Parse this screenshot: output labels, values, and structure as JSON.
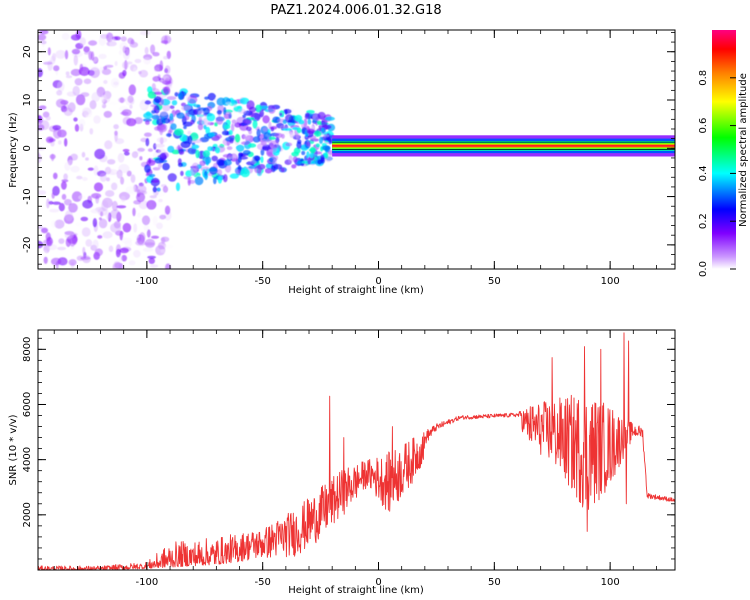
{
  "figure": {
    "title": "PAZ1.2024.006.01.32.G18"
  },
  "chart_data": [
    {
      "type": "heatmap",
      "panel": "spectrogram",
      "xlabel": "Height of straight line (km)",
      "ylabel": "Frequency (Hz)",
      "xlim": [
        -147,
        128
      ],
      "ylim": [
        -25,
        24.5
      ],
      "xticks": [
        -100,
        -50,
        0,
        50,
        100
      ],
      "yticks": [
        -20,
        -10,
        0,
        10,
        20
      ],
      "colorbar": {
        "label": "Normalized spectral amplitude",
        "range": [
          0.0,
          1.0
        ],
        "ticks": [
          0.0,
          0.2,
          0.4,
          0.6,
          0.8
        ],
        "colormap": [
          "#ffffff",
          "#cc99ff",
          "#7f00ff",
          "#0000ff",
          "#00ffff",
          "#00ff00",
          "#ffff00",
          "#ff8000",
          "#ff0000",
          "#ff0080"
        ]
      },
      "description_segments": [
        {
          "x_range": [
            -147,
            -100
          ],
          "spread_hz": 25,
          "peak_amplitude": 0.25
        },
        {
          "x_range": [
            -100,
            -20
          ],
          "spread_hz": 8,
          "peak_amplitude": 0.45
        },
        {
          "x_range": [
            -20,
            128
          ],
          "center_hz": 0.5,
          "spread_hz": 1.5,
          "peak_amplitude": 0.95
        }
      ],
      "grid": false
    },
    {
      "type": "line",
      "panel": "snr",
      "xlabel": "Height of straight line (km)",
      "ylabel": "SNR (10 * v/v)",
      "xlim": [
        -147,
        128
      ],
      "ylim": [
        0,
        8700
      ],
      "xticks": [
        -100,
        -50,
        0,
        50,
        100
      ],
      "yticks": [
        2000,
        4000,
        6000,
        8000
      ],
      "color": "#ee3333",
      "envelope": [
        {
          "x": -147,
          "low": 0,
          "high": 150
        },
        {
          "x": -120,
          "low": 0,
          "high": 150
        },
        {
          "x": -100,
          "low": 50,
          "high": 300
        },
        {
          "x": -90,
          "low": 100,
          "high": 1000
        },
        {
          "x": -70,
          "low": 200,
          "high": 1200
        },
        {
          "x": -50,
          "low": 400,
          "high": 1500
        },
        {
          "x": -35,
          "low": 500,
          "high": 2300
        },
        {
          "x": -25,
          "low": 1100,
          "high": 3000
        },
        {
          "x": -15,
          "low": 2000,
          "high": 3700
        },
        {
          "x": -5,
          "low": 3000,
          "high": 4000
        },
        {
          "x": 5,
          "low": 2000,
          "high": 4300
        },
        {
          "x": 15,
          "low": 3200,
          "high": 4800
        },
        {
          "x": 25,
          "low": 4800,
          "high": 5300
        },
        {
          "x": 35,
          "low": 5300,
          "high": 5600
        },
        {
          "x": 60,
          "low": 5400,
          "high": 5700
        },
        {
          "x": 65,
          "low": 4500,
          "high": 6000
        },
        {
          "x": 75,
          "low": 3800,
          "high": 6200
        },
        {
          "x": 90,
          "low": 2000,
          "high": 6500
        },
        {
          "x": 100,
          "low": 3000,
          "high": 6000
        },
        {
          "x": 110,
          "low": 4800,
          "high": 5300
        },
        {
          "x": 114,
          "low": 4800,
          "high": 5200
        },
        {
          "x": 116,
          "low": 2600,
          "high": 2800
        },
        {
          "x": 128,
          "low": 2450,
          "high": 2600
        }
      ],
      "spikes": [
        {
          "x": -21,
          "y": 6300
        },
        {
          "x": -15,
          "y": 4800
        },
        {
          "x": 6,
          "y": 5200
        },
        {
          "x": 75,
          "y": 7700
        },
        {
          "x": 89,
          "y": 8100
        },
        {
          "x": 96,
          "y": 8000
        },
        {
          "x": 106,
          "y": 8600
        },
        {
          "x": 108,
          "y": 8300
        },
        {
          "x": 90,
          "y": 1400
        },
        {
          "x": 107,
          "y": 2400
        }
      ],
      "grid": false
    }
  ]
}
